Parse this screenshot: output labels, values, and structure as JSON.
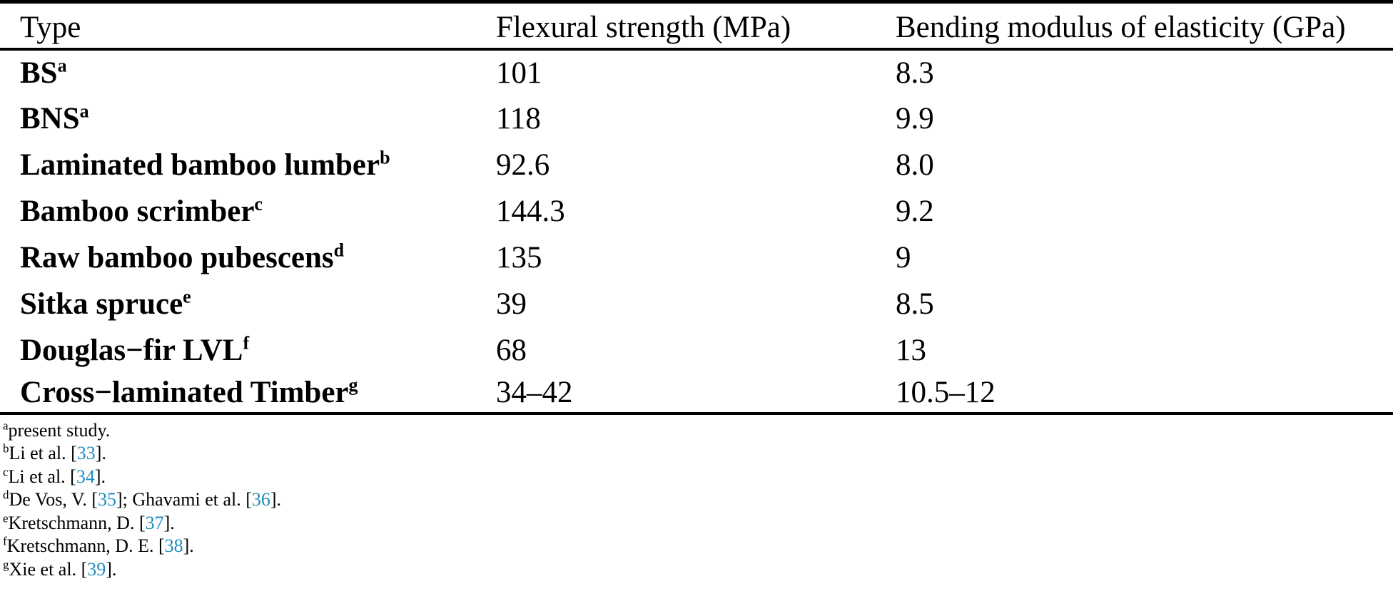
{
  "colors": {
    "reference_link": "#1E8CBE",
    "text": "#000000",
    "background": "#FFFFFF"
  },
  "table": {
    "columns": [
      "Type",
      "Flexural strength (MPa)",
      "Bending modulus of elasticity (GPa)"
    ],
    "rows": [
      {
        "type": "BS",
        "sup": "a",
        "flexural": "101",
        "modulus": "8.3"
      },
      {
        "type": "BNS",
        "sup": "a",
        "flexural": "118",
        "modulus": "9.9"
      },
      {
        "type": "Laminated bamboo lumber",
        "sup": "b",
        "flexural": "92.6",
        "modulus": "8.0"
      },
      {
        "type": "Bamboo scrimber",
        "sup": "c",
        "flexural": "144.3",
        "modulus": "9.2"
      },
      {
        "type": "Raw bamboo pubescens",
        "sup": "d",
        "flexural": "135",
        "modulus": "9"
      },
      {
        "type": "Sitka spruce",
        "sup": "e",
        "flexural": "39",
        "modulus": "8.5"
      },
      {
        "type": "Douglas−fir LVL",
        "sup": "f",
        "flexural": "68",
        "modulus": "13"
      },
      {
        "type": "Cross−laminated Timber",
        "sup": "g",
        "flexural": "34–42",
        "modulus": "10.5–12"
      }
    ]
  },
  "footnotes": [
    {
      "sup": "a",
      "segments": [
        {
          "text": "present study."
        }
      ]
    },
    {
      "sup": "b",
      "segments": [
        {
          "text": "Li et al. ["
        },
        {
          "text": "33",
          "ref": true
        },
        {
          "text": "]."
        }
      ]
    },
    {
      "sup": "c",
      "segments": [
        {
          "text": "Li et al. ["
        },
        {
          "text": "34",
          "ref": true
        },
        {
          "text": "]."
        }
      ]
    },
    {
      "sup": "d",
      "segments": [
        {
          "text": "De Vos, V. ["
        },
        {
          "text": "35",
          "ref": true
        },
        {
          "text": "]; Ghavami et al. ["
        },
        {
          "text": "36",
          "ref": true
        },
        {
          "text": "]."
        }
      ]
    },
    {
      "sup": "e",
      "segments": [
        {
          "text": "Kretschmann, D. ["
        },
        {
          "text": "37",
          "ref": true
        },
        {
          "text": "]."
        }
      ]
    },
    {
      "sup": "f",
      "segments": [
        {
          "text": "Kretschmann, D. E. ["
        },
        {
          "text": "38",
          "ref": true
        },
        {
          "text": "]."
        }
      ]
    },
    {
      "sup": "g",
      "segments": [
        {
          "text": "Xie et al. ["
        },
        {
          "text": "39",
          "ref": true
        },
        {
          "text": "]."
        }
      ]
    }
  ]
}
